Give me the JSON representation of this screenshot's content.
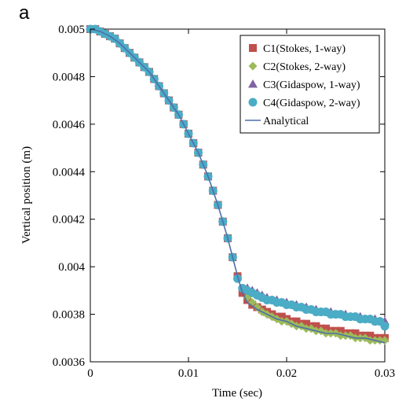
{
  "panel_label": "a",
  "chart_data": {
    "type": "scatter",
    "xlabel": "Time (sec)",
    "ylabel": "Vertical position (m)",
    "xlim": [
      0,
      0.03
    ],
    "ylim": [
      0.0036,
      0.005
    ],
    "x_ticks": [
      0,
      0.01,
      0.02,
      0.03
    ],
    "x_tick_labels": [
      "0",
      "0.01",
      "0.02",
      "0.03"
    ],
    "y_ticks": [
      0.0036,
      0.0038,
      0.004,
      0.0042,
      0.0044,
      0.0046,
      0.0048,
      0.005
    ],
    "y_tick_labels": [
      "0.0036",
      "0.0038",
      "0.004",
      "0.0042",
      "0.0044",
      "0.0046",
      "0.0048",
      "0.005"
    ],
    "grid": false,
    "legend_position": "top-right",
    "series": [
      {
        "name": "C1(Stokes, 1-way)",
        "marker": "square",
        "color": "#c0504d",
        "x": [
          0,
          0.0005,
          0.001,
          0.0015,
          0.002,
          0.0025,
          0.003,
          0.0035,
          0.004,
          0.0045,
          0.005,
          0.0055,
          0.006,
          0.0065,
          0.007,
          0.0075,
          0.008,
          0.0085,
          0.009,
          0.0095,
          0.01,
          0.0105,
          0.011,
          0.0115,
          0.012,
          0.0125,
          0.013,
          0.0135,
          0.014,
          0.0145,
          0.015,
          0.0155,
          0.016,
          0.0165,
          0.017,
          0.0175,
          0.018,
          0.0185,
          0.019,
          0.0195,
          0.02,
          0.0205,
          0.021,
          0.0215,
          0.022,
          0.0225,
          0.023,
          0.0235,
          0.024,
          0.0245,
          0.025,
          0.0255,
          0.026,
          0.0265,
          0.027,
          0.0275,
          0.028,
          0.0285,
          0.029,
          0.0295,
          0.03
        ],
        "y": [
          0.005,
          0.005,
          0.00499,
          0.00498,
          0.00497,
          0.00496,
          0.00494,
          0.00492,
          0.0049,
          0.00488,
          0.00486,
          0.00484,
          0.00482,
          0.00479,
          0.00476,
          0.00473,
          0.0047,
          0.00467,
          0.00464,
          0.0046,
          0.00456,
          0.00452,
          0.00448,
          0.00443,
          0.00438,
          0.00432,
          0.00426,
          0.00419,
          0.00412,
          0.00404,
          0.00396,
          0.00389,
          0.00386,
          0.00384,
          0.00383,
          0.00382,
          0.00381,
          0.0038,
          0.00379,
          0.00379,
          0.00378,
          0.00377,
          0.00377,
          0.00376,
          0.00376,
          0.00375,
          0.00375,
          0.00374,
          0.00374,
          0.00373,
          0.00373,
          0.00373,
          0.00372,
          0.00372,
          0.00372,
          0.00371,
          0.00371,
          0.00371,
          0.0037,
          0.0037,
          0.0037
        ]
      },
      {
        "name": "C2(Stokes, 2-way)",
        "marker": "diamond",
        "color": "#9bbb59",
        "x": [
          0.016,
          0.0165,
          0.017,
          0.0175,
          0.018,
          0.0185,
          0.019,
          0.0195,
          0.02,
          0.0205,
          0.021,
          0.0215,
          0.022,
          0.0225,
          0.023,
          0.0235,
          0.024,
          0.0245,
          0.025,
          0.0255,
          0.026,
          0.0265,
          0.027,
          0.0275,
          0.028,
          0.0285,
          0.029,
          0.0295,
          0.03
        ],
        "y": [
          0.00387,
          0.00385,
          0.00383,
          0.00381,
          0.0038,
          0.00379,
          0.00378,
          0.00377,
          0.00377,
          0.00376,
          0.00375,
          0.00375,
          0.00374,
          0.00374,
          0.00373,
          0.00373,
          0.00372,
          0.00372,
          0.00372,
          0.00371,
          0.00371,
          0.00371,
          0.0037,
          0.0037,
          0.0037,
          0.00369,
          0.00369,
          0.00369,
          0.00369
        ]
      },
      {
        "name": "C3(Gidaspow, 1-way)",
        "marker": "triangle",
        "color": "#8064a2",
        "x": [
          0.016,
          0.0165,
          0.017,
          0.0175,
          0.018,
          0.0185,
          0.019,
          0.0195,
          0.02,
          0.0205,
          0.021,
          0.0215,
          0.022,
          0.0225,
          0.023,
          0.0235,
          0.024,
          0.0245,
          0.025,
          0.0255,
          0.026,
          0.0265,
          0.027,
          0.0275,
          0.028,
          0.0285,
          0.029,
          0.0295,
          0.03
        ],
        "y": [
          0.00391,
          0.0039,
          0.00389,
          0.00388,
          0.00387,
          0.00386,
          0.00386,
          0.00385,
          0.00385,
          0.00384,
          0.00384,
          0.00383,
          0.00383,
          0.00382,
          0.00382,
          0.00381,
          0.00381,
          0.00381,
          0.0038,
          0.0038,
          0.0038,
          0.00379,
          0.00379,
          0.00379,
          0.00378,
          0.00378,
          0.00378,
          0.00377,
          0.00377
        ]
      },
      {
        "name": "C4(Gidaspow, 2-way)",
        "marker": "circle",
        "color": "#4bacc6",
        "x": [
          0,
          0.0005,
          0.001,
          0.0015,
          0.002,
          0.0025,
          0.003,
          0.0035,
          0.004,
          0.0045,
          0.005,
          0.0055,
          0.006,
          0.0065,
          0.007,
          0.0075,
          0.008,
          0.0085,
          0.009,
          0.0095,
          0.01,
          0.0105,
          0.011,
          0.0115,
          0.012,
          0.0125,
          0.013,
          0.0135,
          0.014,
          0.0145,
          0.015,
          0.0155,
          0.016,
          0.0165,
          0.017,
          0.0175,
          0.018,
          0.0185,
          0.019,
          0.0195,
          0.02,
          0.0205,
          0.021,
          0.0215,
          0.022,
          0.0225,
          0.023,
          0.0235,
          0.024,
          0.0245,
          0.025,
          0.0255,
          0.026,
          0.0265,
          0.027,
          0.0275,
          0.028,
          0.0285,
          0.029,
          0.0295,
          0.03
        ],
        "y": [
          0.005,
          0.005,
          0.00499,
          0.00498,
          0.00497,
          0.00496,
          0.00494,
          0.00492,
          0.0049,
          0.00488,
          0.00486,
          0.00484,
          0.00482,
          0.00479,
          0.00476,
          0.00473,
          0.0047,
          0.00467,
          0.00464,
          0.0046,
          0.00456,
          0.00452,
          0.00448,
          0.00443,
          0.00438,
          0.00432,
          0.00426,
          0.00419,
          0.00412,
          0.00404,
          0.00395,
          0.00391,
          0.0039,
          0.00389,
          0.00388,
          0.00387,
          0.00386,
          0.00386,
          0.00385,
          0.00385,
          0.00384,
          0.00384,
          0.00383,
          0.00383,
          0.00382,
          0.00382,
          0.00381,
          0.00381,
          0.00381,
          0.0038,
          0.0038,
          0.0038,
          0.00379,
          0.00379,
          0.00379,
          0.00378,
          0.00378,
          0.00378,
          0.00377,
          0.00377,
          0.00375
        ]
      },
      {
        "name": "Analytical",
        "marker": "line",
        "color": "#4f6fa8",
        "x": [
          0,
          0.001,
          0.002,
          0.003,
          0.004,
          0.005,
          0.006,
          0.007,
          0.008,
          0.009,
          0.01,
          0.011,
          0.012,
          0.013,
          0.014,
          0.0145,
          0.015,
          0.0155,
          0.016,
          0.017,
          0.018,
          0.019,
          0.02,
          0.021,
          0.022,
          0.023,
          0.024,
          0.025,
          0.026,
          0.027,
          0.028,
          0.029,
          0.03
        ],
        "y": [
          0.005,
          0.00499,
          0.00497,
          0.00494,
          0.0049,
          0.00486,
          0.00482,
          0.00476,
          0.0047,
          0.00464,
          0.00456,
          0.00448,
          0.00438,
          0.00426,
          0.00412,
          0.00404,
          0.00396,
          0.00389,
          0.00385,
          0.00382,
          0.0038,
          0.00378,
          0.00377,
          0.00375,
          0.00374,
          0.00373,
          0.00372,
          0.00372,
          0.00371,
          0.0037,
          0.0037,
          0.00369,
          0.00368
        ]
      }
    ]
  }
}
